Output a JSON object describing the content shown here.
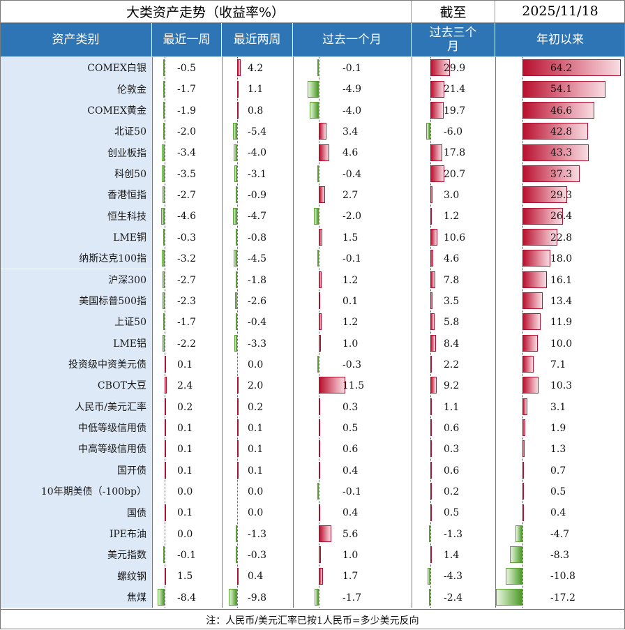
{
  "header": {
    "title": "大类资产走势（收益率%）",
    "as_of_label": "截至",
    "date": "2025/11/18"
  },
  "columns": [
    "资产类别",
    "最近一周",
    "最近两周",
    "过去一个月",
    "过去三个月",
    "年初以来"
  ],
  "footer_note": "注：人民币/美元汇率已按1人民币=多少美元反向",
  "colors": {
    "positive": "#b8102e",
    "negative": "#5a9e35",
    "header_bg": "#2e75b6",
    "label_bg": "#dde9f6"
  },
  "chart_data": {
    "type": "table",
    "title": "大类资产走势（收益率%）",
    "rows": [
      {
        "asset": "COMEX白银",
        "values": [
          "-0.5",
          "4.2",
          "-0.1",
          "29.9",
          "64.2"
        ]
      },
      {
        "asset": "伦敦金",
        "values": [
          "-1.7",
          "1.1",
          "-4.9",
          "21.4",
          "54.1"
        ]
      },
      {
        "asset": "COMEX黄金",
        "values": [
          "-1.9",
          "0.8",
          "-4.0",
          "19.7",
          "46.6"
        ]
      },
      {
        "asset": "北证50",
        "values": [
          "-2.0",
          "-5.4",
          "3.4",
          "-6.0",
          "42.8"
        ]
      },
      {
        "asset": "创业板指",
        "values": [
          "-3.4",
          "-4.0",
          "4.6",
          "17.8",
          "43.3"
        ]
      },
      {
        "asset": "科创50",
        "values": [
          "-3.5",
          "-3.1",
          "-0.4",
          "20.7",
          "37.3"
        ]
      },
      {
        "asset": "香港恒指",
        "values": [
          "-2.7",
          "-0.9",
          "2.7",
          "3.0",
          "29.3"
        ]
      },
      {
        "asset": "恒生科技",
        "values": [
          "-4.6",
          "-4.7",
          "-2.0",
          "1.2",
          "26.4"
        ]
      },
      {
        "asset": "LME铜",
        "values": [
          "-0.3",
          "-0.8",
          "1.5",
          "10.6",
          "22.8"
        ]
      },
      {
        "asset": "纳斯达克100指",
        "values": [
          "-3.2",
          "-4.5",
          "-0.1",
          "4.6",
          "18.0"
        ]
      },
      {
        "asset": "沪深300",
        "values": [
          "-2.7",
          "-1.8",
          "1.2",
          "7.8",
          "16.1"
        ]
      },
      {
        "asset": "美国标普500指",
        "values": [
          "-2.3",
          "-2.6",
          "0.1",
          "3.5",
          "13.4"
        ]
      },
      {
        "asset": "上证50",
        "values": [
          "-1.7",
          "-0.4",
          "1.2",
          "5.8",
          "11.9"
        ]
      },
      {
        "asset": "LME铝",
        "values": [
          "-2.2",
          "-3.3",
          "1.0",
          "8.4",
          "10.0"
        ]
      },
      {
        "asset": "投资级中资美元债",
        "values": [
          "0.1",
          "0.0",
          "-0.3",
          "2.2",
          "7.1"
        ]
      },
      {
        "asset": "CBOT大豆",
        "values": [
          "2.4",
          "2.0",
          "11.5",
          "9.2",
          "10.3"
        ]
      },
      {
        "asset": "人民币/美元汇率",
        "values": [
          "0.2",
          "0.2",
          "0.3",
          "1.1",
          "3.1"
        ]
      },
      {
        "asset": "中低等级信用债",
        "values": [
          "0.1",
          "0.1",
          "0.5",
          "0.6",
          "1.9"
        ]
      },
      {
        "asset": "中高等级信用债",
        "values": [
          "0.1",
          "0.1",
          "0.6",
          "0.3",
          "1.3"
        ]
      },
      {
        "asset": "国开债",
        "values": [
          "0.1",
          "0.1",
          "0.4",
          "0.6",
          "0.7"
        ]
      },
      {
        "asset": "10年期美债（-100bp）",
        "values": [
          "0.0",
          "0.0",
          "-0.1",
          "0.2",
          "0.5"
        ]
      },
      {
        "asset": "国债",
        "values": [
          "0.1",
          "0.0",
          "0.4",
          "0.5",
          "0.4"
        ]
      },
      {
        "asset": "IPE布油",
        "values": [
          "0.0",
          "-1.3",
          "5.6",
          "-1.3",
          "-4.7"
        ]
      },
      {
        "asset": "美元指数",
        "values": [
          "-0.1",
          "-0.3",
          "1.0",
          "1.4",
          "-8.3"
        ]
      },
      {
        "asset": "螺纹钢",
        "values": [
          "1.5",
          "0.4",
          "1.7",
          "-4.3",
          "-10.8"
        ]
      },
      {
        "asset": "焦煤",
        "values": [
          "-8.4",
          "-9.8",
          "-1.7",
          "-2.4",
          "-17.2"
        ]
      }
    ]
  }
}
